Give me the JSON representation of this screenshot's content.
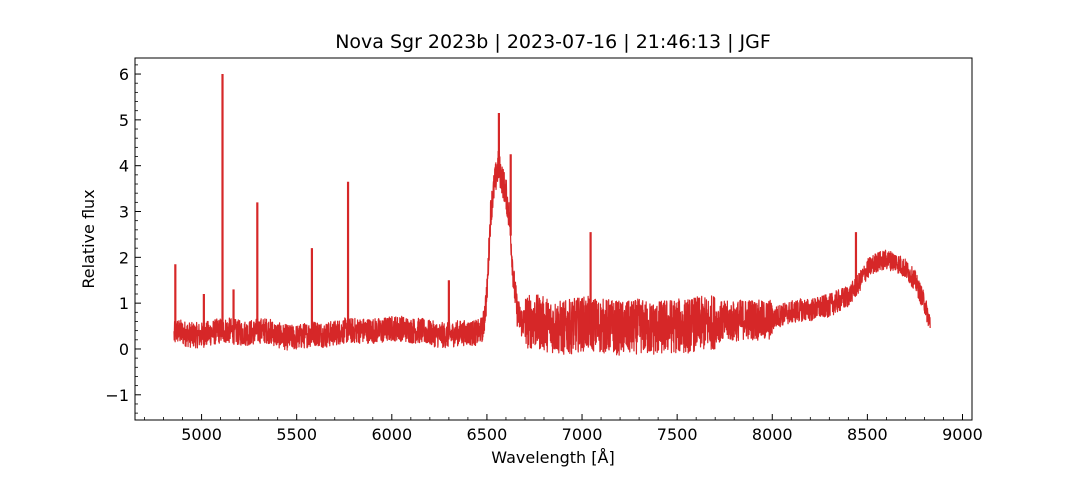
{
  "chart_data": {
    "type": "line",
    "title": "Nova Sgr 2023b | 2023-07-16 | 21:46:13 | JGF",
    "xlabel": "Wavelength [Å]",
    "ylabel": "Relative flux",
    "xlim": [
      4650,
      9050
    ],
    "ylim": [
      -1.55,
      6.35
    ],
    "xticks": [
      5000,
      5500,
      6000,
      6500,
      7000,
      7500,
      8000,
      8500,
      9000
    ],
    "xtick_labels": [
      "5000",
      "5500",
      "6000",
      "6500",
      "7000",
      "7500",
      "8000",
      "8500",
      "9000"
    ],
    "yticks": [
      -1,
      0,
      1,
      2,
      3,
      4,
      5,
      6
    ],
    "ytick_labels": [
      "−1",
      "0",
      "1",
      "2",
      "3",
      "4",
      "5",
      "6"
    ],
    "grid": false,
    "line_color": "#d62728",
    "series": [
      {
        "values_note": "continuum envelope (wavelength Å, relative flux) sampled across the spectrum",
        "x": [
          4855,
          4870,
          4900,
          4950,
          5000,
          5050,
          5100,
          5150,
          5200,
          5250,
          5300,
          5350,
          5400,
          5450,
          5500,
          5550,
          5600,
          5650,
          5700,
          5750,
          5800,
          5850,
          5900,
          5950,
          6000,
          6050,
          6100,
          6150,
          6200,
          6250,
          6300,
          6350,
          6400,
          6450,
          6480,
          6500,
          6520,
          6540,
          6560,
          6580,
          6600,
          6620,
          6640,
          6660,
          6680,
          6700,
          6750,
          6800,
          6850,
          6900,
          6950,
          7000,
          7050,
          7100,
          7150,
          7200,
          7250,
          7300,
          7350,
          7400,
          7450,
          7500,
          7550,
          7600,
          7650,
          7700,
          7750,
          7800,
          7850,
          7900,
          7950,
          8000,
          8050,
          8100,
          8150,
          8200,
          8250,
          8300,
          8350,
          8400,
          8450,
          8500,
          8550,
          8600,
          8650,
          8700,
          8750,
          8800,
          8830
        ],
        "y": [
          0.3,
          0.4,
          0.35,
          0.3,
          0.3,
          0.35,
          0.4,
          0.4,
          0.35,
          0.35,
          0.4,
          0.4,
          0.3,
          0.25,
          0.25,
          0.3,
          0.35,
          0.3,
          0.35,
          0.4,
          0.4,
          0.4,
          0.4,
          0.4,
          0.45,
          0.45,
          0.4,
          0.4,
          0.35,
          0.3,
          0.3,
          0.35,
          0.35,
          0.35,
          0.45,
          1.2,
          3.0,
          3.6,
          4.0,
          3.7,
          3.4,
          2.8,
          1.5,
          0.8,
          0.6,
          0.6,
          0.6,
          0.55,
          0.5,
          0.45,
          0.5,
          0.55,
          0.55,
          0.5,
          0.5,
          0.45,
          0.45,
          0.5,
          0.45,
          0.45,
          0.5,
          0.5,
          0.5,
          0.55,
          0.55,
          0.6,
          0.6,
          0.6,
          0.65,
          0.65,
          0.6,
          0.65,
          0.75,
          0.8,
          0.85,
          0.85,
          0.9,
          0.95,
          1.05,
          1.15,
          1.4,
          1.75,
          1.9,
          1.95,
          1.9,
          1.75,
          1.5,
          1.0,
          0.55
        ]
      }
    ],
    "emission_spikes": [
      {
        "x": 4862,
        "y": 1.85
      },
      {
        "x": 5012,
        "y": 1.2
      },
      {
        "x": 5110,
        "y": 6.0
      },
      {
        "x": 5168,
        "y": 1.3
      },
      {
        "x": 5293,
        "y": 3.2
      },
      {
        "x": 5580,
        "y": 2.2
      },
      {
        "x": 5770,
        "y": 3.65
      },
      {
        "x": 6300,
        "y": 1.5
      },
      {
        "x": 6563,
        "y": 5.15
      },
      {
        "x": 6625,
        "y": 4.25
      },
      {
        "x": 7045,
        "y": 2.55
      },
      {
        "x": 8440,
        "y": 2.55
      }
    ]
  }
}
